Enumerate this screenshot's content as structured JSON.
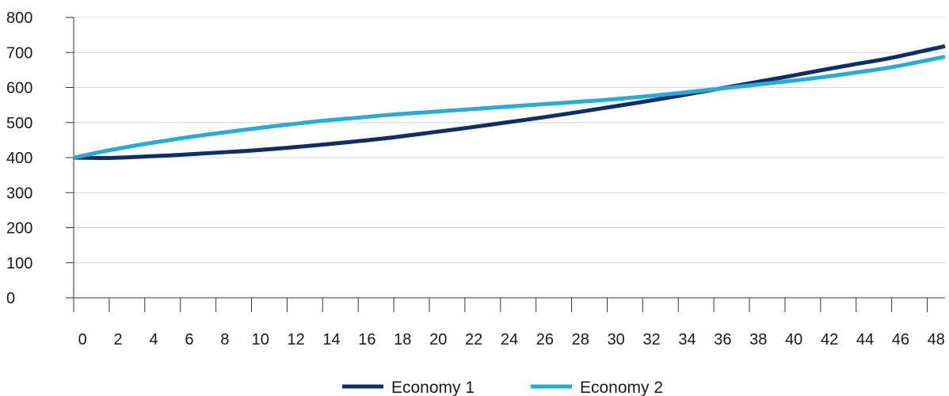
{
  "chart_data": {
    "type": "line",
    "title": "",
    "xlabel": "",
    "ylabel": "",
    "xlim": [
      0,
      49
    ],
    "ylim": [
      0,
      800
    ],
    "x_ticks": [
      "0",
      "2",
      "4",
      "6",
      "8",
      "10",
      "12",
      "14",
      "16",
      "18",
      "20",
      "22",
      "24",
      "26",
      "28",
      "30",
      "32",
      "34",
      "36",
      "38",
      "40",
      "42",
      "44",
      "46",
      "48"
    ],
    "y_ticks": [
      "0",
      "100",
      "200",
      "300",
      "400",
      "500",
      "600",
      "700",
      "800"
    ],
    "grid": "horizontal",
    "legend_position": "bottom",
    "x": [
      0,
      2,
      4,
      6,
      8,
      10,
      12,
      14,
      16,
      18,
      20,
      22,
      24,
      26,
      28,
      30,
      32,
      34,
      36,
      38,
      40,
      42,
      44,
      46,
      49
    ],
    "series": [
      {
        "name": "Economy 1",
        "color": "#0f2d6b",
        "values": [
          400,
          399,
          403,
          408,
          414,
          420,
          428,
          437,
          447,
          458,
          471,
          484,
          498,
          512,
          527,
          543,
          559,
          576,
          594,
          612,
          630,
          649,
          667,
          685,
          718
        ]
      },
      {
        "name": "Economy 2",
        "color": "#27acd9",
        "values": [
          400,
          421,
          439,
          455,
          469,
          482,
          494,
          505,
          514,
          523,
          530,
          537,
          544,
          551,
          558,
          565,
          574,
          584,
          595,
          606,
          617,
          629,
          643,
          658,
          688
        ]
      }
    ]
  }
}
